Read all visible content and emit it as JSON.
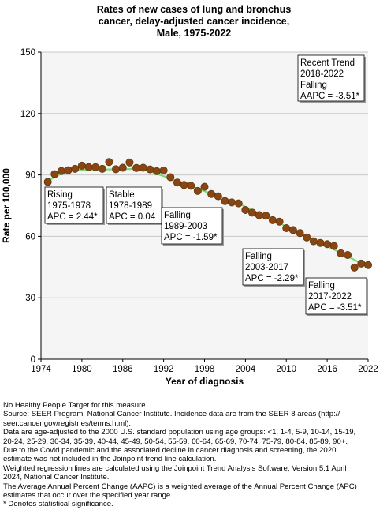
{
  "chart_data": {
    "type": "scatter",
    "title": [
      "Rates of new cases of lung and bronchus",
      "cancer, delay-adjusted cancer incidence,",
      "Male,  1975-2022"
    ],
    "xlabel": "Year of diagnosis",
    "ylabel": "Rate per 100,000",
    "xlim": [
      1974,
      2022
    ],
    "ylim": [
      0,
      150
    ],
    "xticks": [
      1974,
      1980,
      1986,
      1992,
      1998,
      2004,
      2010,
      2016,
      2022
    ],
    "yticks": [
      0,
      30,
      60,
      90,
      120,
      150
    ],
    "grid": "horizontal",
    "colors": {
      "point": "#8B4513",
      "point_edge": "#5a3a10",
      "fit_line": "#7ed87e",
      "plot_bg": "#f5f5f5",
      "grid": "#c8c8c8"
    },
    "observed": {
      "x": [
        1975,
        1976,
        1977,
        1978,
        1979,
        1980,
        1981,
        1982,
        1983,
        1984,
        1985,
        1986,
        1987,
        1988,
        1989,
        1990,
        1991,
        1992,
        1993,
        1994,
        1995,
        1996,
        1997,
        1998,
        1999,
        2000,
        2001,
        2002,
        2003,
        2004,
        2005,
        2006,
        2007,
        2008,
        2009,
        2010,
        2011,
        2012,
        2013,
        2014,
        2015,
        2016,
        2017,
        2018,
        2019,
        2020,
        2021,
        2022
      ],
      "y": [
        86.6,
        90.4,
        91.9,
        92.3,
        93.0,
        94.5,
        93.8,
        93.8,
        93.0,
        96.3,
        92.8,
        93.5,
        96.1,
        93.4,
        93.5,
        92.7,
        91.8,
        92.2,
        88.9,
        86.3,
        85.1,
        84.7,
        82.2,
        84.2,
        80.7,
        79.6,
        77.2,
        76.6,
        76.1,
        72.9,
        71.6,
        70.4,
        70.1,
        67.9,
        67.2,
        64.0,
        63.1,
        61.6,
        59.5,
        57.6,
        56.8,
        56.2,
        55.3,
        51.7,
        50.9,
        44.8,
        46.7,
        46.0
      ]
    },
    "fit": {
      "x": [
        1975,
        1978,
        1989,
        2003,
        2017,
        2022
      ],
      "y": [
        87.2,
        92.4,
        93.0,
        76.0,
        53.6,
        45.1
      ]
    },
    "segments": [
      {
        "lines": [
          "Rising",
          "1975-1978",
          "APC =  2.44*"
        ]
      },
      {
        "lines": [
          "Stable",
          "1978-1989",
          "APC =  0.04"
        ]
      },
      {
        "lines": [
          "Falling",
          "1989-2003",
          "APC = -1.59*"
        ]
      },
      {
        "lines": [
          "Falling",
          "2003-2017",
          "APC = -2.29*"
        ]
      },
      {
        "lines": [
          "Falling",
          "2017-2022",
          "APC = -3.51*"
        ]
      }
    ],
    "recent_trend": {
      "lines": [
        "Recent Trend",
        "2018-2022",
        "Falling",
        "AAPC = -3.51*"
      ]
    }
  },
  "notes": [
    "No Healthy People Target for this measure.",
    "Source: SEER Program, National Cancer Institute. Incidence data are from the SEER 8 areas (http://\nseer.cancer.gov/registries/terms.html).",
    "Data are age-adjusted to the 2000 U.S. standard population using age groups: <1, 1-4, 5-9, 10-14, 15-19,\n20-24, 25-29, 30-34, 35-39, 40-44, 45-49, 50-54, 55-59, 60-64, 65-69, 70-74, 75-79, 80-84, 85-89, 90+.",
    "Due to the Covid pandemic and the associated decline in cancer diagnosis and screening, the 2020\nestimate was not included in the Joinpoint trend line calculation.",
    "Weighted regression lines are calculated using the Joinpoint Trend Analysis Software, Version 5.1 April\n2024, National Cancer Institute.",
    "The Average Annual Percent Change (AAPC) is a weighted average of the Annual Percent Change (APC)\nestimates that occur over the specified year range.",
    "* Denotes statistical significance."
  ]
}
